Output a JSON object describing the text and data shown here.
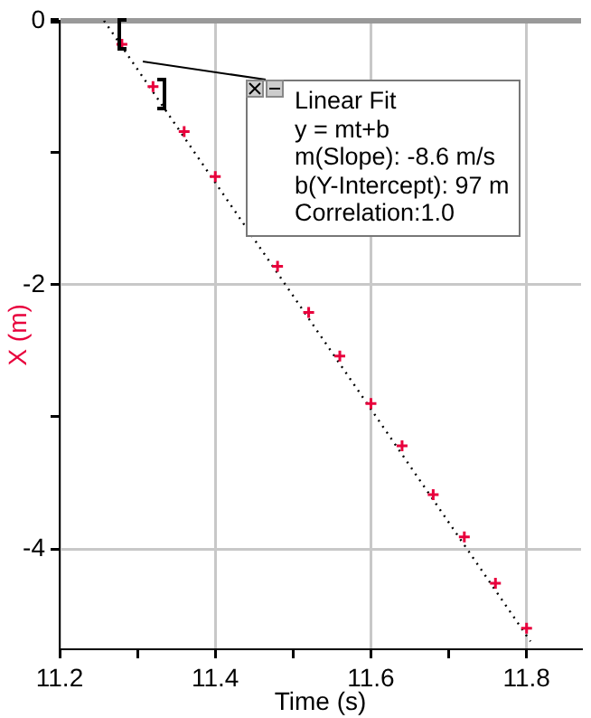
{
  "chart_data": {
    "type": "scatter",
    "xlabel": "Time (s)",
    "ylabel": "X (m)",
    "x": [
      11.28,
      11.32,
      11.36,
      11.4,
      11.44,
      11.48,
      11.52,
      11.56,
      11.6,
      11.64,
      11.68,
      11.72,
      11.76,
      11.8
    ],
    "series": [
      {
        "color": "#e8003c",
        "values": [
          -0.18,
          -0.5,
          -0.84,
          -1.18,
          null,
          -1.86,
          -2.21,
          -2.54,
          -2.9,
          -3.22,
          -3.59,
          -3.91,
          -4.26,
          -4.6
        ]
      },
      {
        "type": "line",
        "color": "#000000",
        "marker": "none",
        "x": [
          11.257,
          11.805
        ],
        "values": [
          0,
          -4.7
        ]
      }
    ],
    "xlim": [
      11.2,
      11.87
    ],
    "ylim": [
      -4.76,
      0
    ],
    "xticks": [
      11.2,
      {
        "value": 11.3,
        "label": null
      },
      11.4,
      {
        "value": 11.5,
        "label": null
      },
      11.6,
      {
        "value": 11.7,
        "label": null
      },
      11.8
    ],
    "yticks": [
      0,
      {
        "value": -1,
        "label": null
      },
      -2,
      {
        "value": -3,
        "label": null
      },
      -4
    ],
    "grid": true,
    "marker": "cross",
    "line_style": "dotted",
    "annotations": [
      "Linear Fit",
      "y = mt+b",
      "m(Slope): -8.6 m/s",
      "b(Y-Intercept): 97 m",
      "Correlation:1.0"
    ]
  }
}
